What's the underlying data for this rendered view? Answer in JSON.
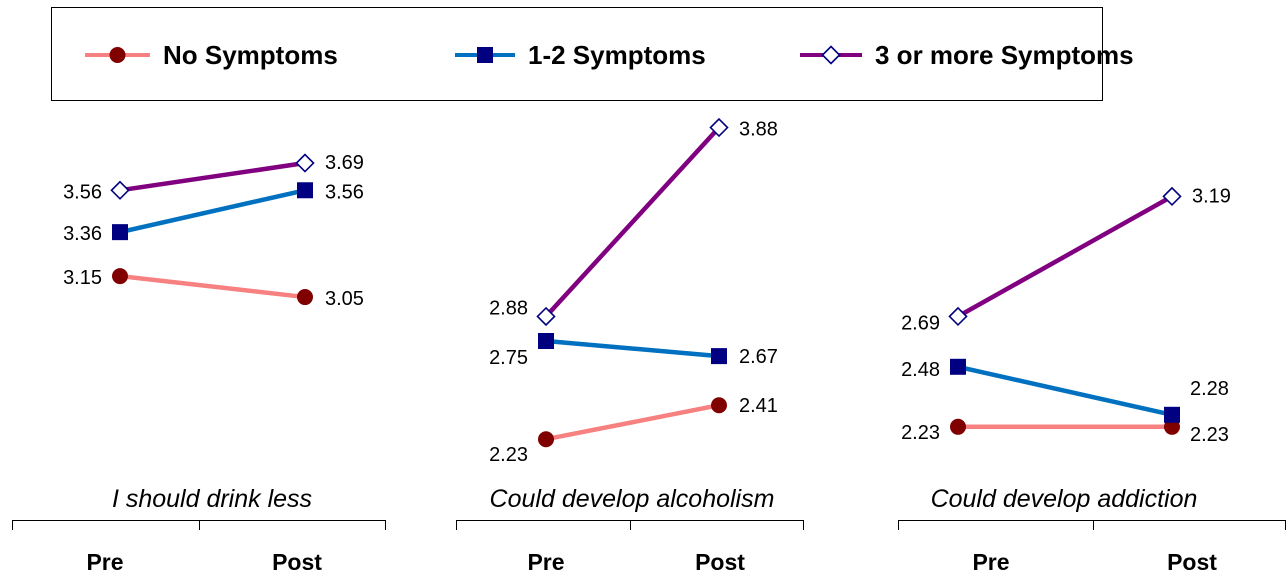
{
  "chart_data": {
    "type": "line",
    "legend": {
      "placement": "top",
      "items": [
        {
          "name": "No Symptoms",
          "color": "#F78080",
          "marker": "circle",
          "marker_color": "#800000"
        },
        {
          "name": "1-2 Symptoms",
          "color": "#0070C0",
          "marker": "square",
          "marker_color": "#000080"
        },
        {
          "name": "3 or more Symptoms",
          "color": "#800080",
          "marker": "diamond",
          "marker_color": "#FFFFFF"
        }
      ]
    },
    "categories": [
      "Pre",
      "Post"
    ],
    "panels": [
      {
        "title": "I should drink less",
        "series": [
          {
            "name": "No Symptoms",
            "values": [
              3.15,
              3.05
            ],
            "labels": [
              "3.15",
              "3.05"
            ]
          },
          {
            "name": "1-2 Symptoms",
            "values": [
              3.36,
              3.56
            ],
            "labels": [
              "3.36",
              "3.56"
            ]
          },
          {
            "name": "3 or more Symptoms",
            "values": [
              3.56,
              3.69
            ],
            "labels": [
              "3.56",
              "3.69"
            ]
          }
        ]
      },
      {
        "title": "Could develop alcoholism",
        "series": [
          {
            "name": "No Symptoms",
            "values": [
              2.23,
              2.41
            ],
            "labels": [
              "2.23",
              "2.41"
            ]
          },
          {
            "name": "1-2 Symptoms",
            "values": [
              2.75,
              2.67
            ],
            "labels": [
              "2.75",
              "2.67"
            ]
          },
          {
            "name": "3 or more Symptoms",
            "values": [
              2.88,
              3.88
            ],
            "labels": [
              "2.88",
              "3.88"
            ]
          }
        ]
      },
      {
        "title": "Could develop addiction",
        "series": [
          {
            "name": "No Symptoms",
            "values": [
              2.23,
              2.23
            ],
            "labels": [
              "2.23",
              "2.23"
            ]
          },
          {
            "name": "1-2 Symptoms",
            "values": [
              2.48,
              2.28
            ],
            "labels": [
              "2.48",
              "2.28"
            ]
          },
          {
            "name": "3 or more Symptoms",
            "values": [
              2.69,
              3.19
            ],
            "labels": [
              "2.69",
              "3.19"
            ]
          }
        ]
      }
    ],
    "grid": false
  }
}
